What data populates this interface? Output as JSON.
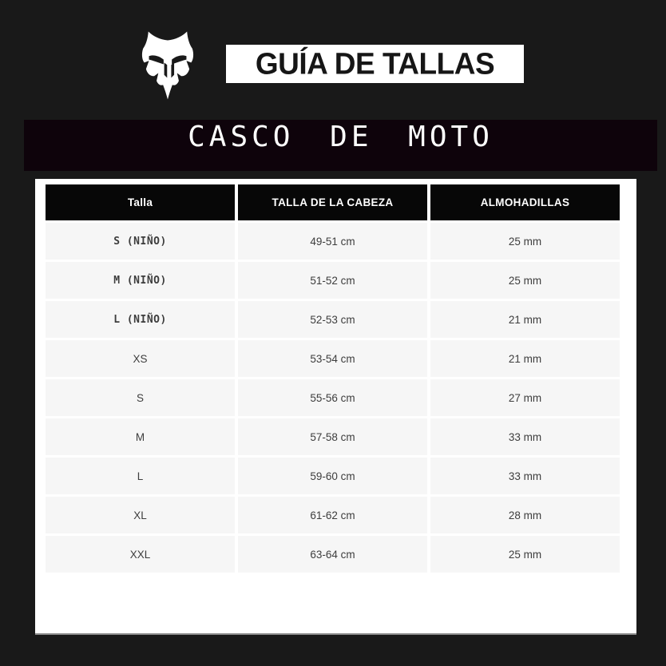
{
  "header": {
    "logo_icon": "fox-head-icon",
    "title": "GUÍA DE TALLAS",
    "subtitle": "CASCO DE MOTO"
  },
  "table": {
    "columns": [
      "Talla",
      "TALLA DE LA CABEZA",
      "ALMOHADILLAS"
    ],
    "rows": [
      [
        "S (NIÑO)",
        "49-51 cm",
        "25 mm"
      ],
      [
        "M (NIÑO)",
        "51-52 cm",
        "25 mm"
      ],
      [
        "L (NIÑO)",
        "52-53 cm",
        "21 mm"
      ],
      [
        "XS",
        "53-54 cm",
        "21 mm"
      ],
      [
        "S",
        "55-56 cm",
        "27 mm"
      ],
      [
        "M",
        "57-58 cm",
        "33 mm"
      ],
      [
        "L",
        "59-60 cm",
        "33 mm"
      ],
      [
        "XL",
        "61-62 cm",
        "28 mm"
      ],
      [
        "XXL",
        "63-64 cm",
        "25 mm"
      ]
    ]
  },
  "colors": {
    "canvas_bg": "#191919",
    "subtitle_band_bg": "#0e030b",
    "panel_bg": "#ffffff",
    "table_header_bg": "#070707",
    "table_header_text": "#ffffff",
    "row_bg": "#f6f6f6",
    "row_text": "#3d3d3d",
    "logo_color": "#ffffff"
  }
}
